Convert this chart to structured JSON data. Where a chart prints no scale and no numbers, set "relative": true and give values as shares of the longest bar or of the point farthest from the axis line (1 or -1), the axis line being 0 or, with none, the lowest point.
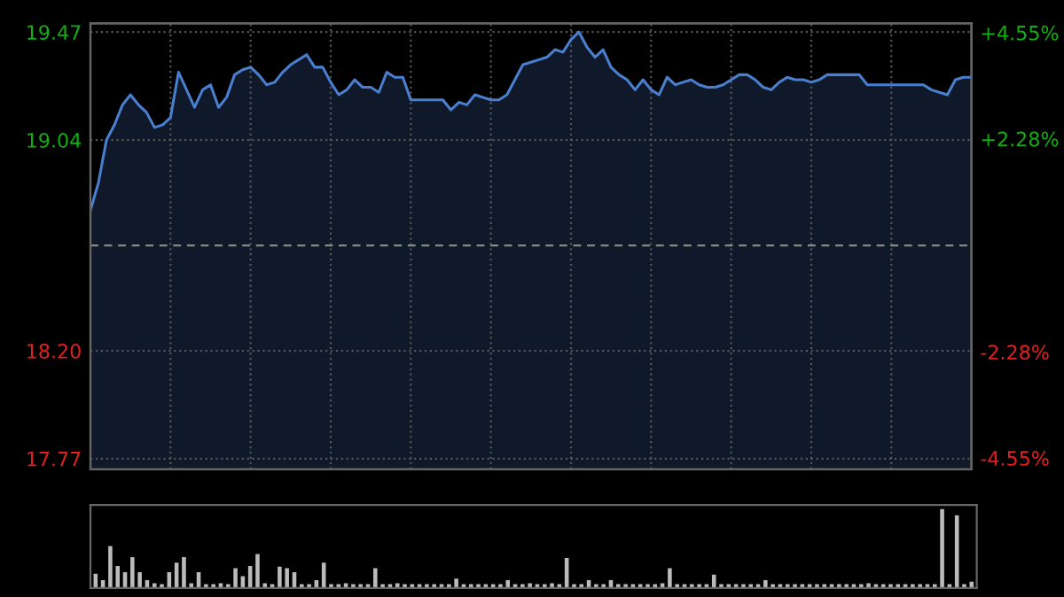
{
  "chart_data": [
    {
      "type": "area",
      "categories": [
        null,
        null,
        null,
        null,
        null,
        null,
        null,
        null,
        null,
        null,
        null,
        null,
        null,
        null,
        null,
        null,
        null,
        null,
        null,
        null,
        null,
        null,
        null,
        null,
        null,
        null,
        null,
        null,
        null,
        null,
        null,
        null,
        null,
        null,
        null,
        null,
        null,
        null,
        null,
        null,
        null,
        null,
        null,
        null,
        null,
        null,
        null,
        null,
        null,
        null,
        null,
        null,
        null,
        null,
        null,
        null,
        null,
        null,
        null,
        null,
        null,
        null,
        null,
        null,
        null,
        null,
        null,
        null,
        null,
        null,
        null,
        null,
        null,
        null,
        null,
        null,
        null,
        null,
        null,
        null,
        null,
        null,
        null,
        null,
        null,
        null,
        null,
        null,
        null,
        null,
        null,
        null,
        null,
        null,
        null,
        null,
        null,
        null,
        null,
        null,
        null,
        null,
        null,
        null,
        null,
        null,
        null,
        null,
        null,
        null,
        null
      ],
      "ylim": [
        17.728,
        19.505
      ],
      "yticks": [
        19.47,
        19.04,
        {
          "value": 18.2,
          "label": "18.20"
        },
        17.77
      ],
      "y2lim": [
        -4.79,
        4.75
      ],
      "y2ticks": [
        {
          "value": 4.55,
          "label": "+4.55%"
        },
        {
          "value": 2.28,
          "label": "+2.28%"
        },
        {
          "value": -2.28,
          "label": "-2.28%"
        },
        {
          "value": -4.55,
          "label": "-4.55%"
        }
      ],
      "grid": true,
      "ref_lines": [
        {
          "axis": "y",
          "value": 18.62,
          "label": null,
          "color": "#888888",
          "line_style": "dashed"
        }
      ],
      "series": [
        {
          "color": "#4a7fd0",
          "values": [
            18.76,
            18.87,
            19.04,
            19.1,
            19.18,
            19.22,
            19.18,
            19.15,
            19.09,
            19.1,
            19.13,
            19.31,
            19.24,
            19.17,
            19.24,
            19.26,
            19.17,
            19.21,
            19.3,
            19.32,
            19.33,
            19.3,
            19.26,
            19.27,
            19.31,
            19.34,
            19.36,
            19.38,
            19.33,
            19.33,
            19.27,
            19.22,
            19.24,
            19.28,
            19.25,
            19.25,
            19.23,
            19.31,
            19.29,
            19.29,
            19.2,
            19.2,
            19.2,
            19.2,
            19.2,
            19.16,
            19.19,
            19.18,
            19.22,
            19.21,
            19.2,
            19.2,
            19.22,
            19.28,
            19.34,
            19.35,
            19.36,
            19.37,
            19.4,
            19.39,
            19.44,
            19.47,
            19.41,
            19.37,
            19.4,
            19.33,
            19.3,
            19.28,
            19.24,
            19.28,
            19.24,
            19.22,
            19.29,
            19.26,
            19.27,
            19.28,
            19.26,
            19.25,
            19.25,
            19.26,
            19.28,
            19.3,
            19.3,
            19.28,
            19.25,
            19.24,
            19.27,
            19.29,
            19.28,
            19.28,
            19.27,
            19.28,
            19.3,
            19.3,
            19.3,
            19.3,
            19.3,
            19.26,
            19.26,
            19.26,
            19.26,
            19.26,
            19.26,
            19.26,
            19.26,
            19.24,
            19.23,
            19.22,
            19.28,
            19.29,
            19.29
          ]
        }
      ]
    },
    {
      "type": "bar",
      "relative": true,
      "categories": [
        null,
        null,
        null,
        null,
        null,
        null,
        null,
        null,
        null,
        null,
        null,
        null,
        null,
        null,
        null,
        null,
        null,
        null,
        null,
        null,
        null,
        null,
        null,
        null,
        null,
        null,
        null,
        null,
        null,
        null,
        null,
        null,
        null,
        null,
        null,
        null,
        null,
        null,
        null,
        null,
        null,
        null,
        null,
        null,
        null,
        null,
        null,
        null,
        null,
        null,
        null,
        null,
        null,
        null,
        null,
        null,
        null,
        null,
        null,
        null,
        null,
        null,
        null,
        null,
        null,
        null,
        null,
        null,
        null,
        null,
        null,
        null,
        null,
        null,
        null,
        null,
        null,
        null,
        null,
        null,
        null,
        null,
        null,
        null,
        null,
        null,
        null,
        null,
        null,
        null,
        null,
        null,
        null,
        null,
        null,
        null,
        null,
        null,
        null,
        null,
        null,
        null,
        null,
        null,
        null,
        null,
        null,
        null,
        null,
        null,
        null,
        null,
        null,
        null,
        null,
        null,
        null,
        null,
        null,
        null
      ],
      "color": "#bbbbbb",
      "values": [
        0.18,
        0.1,
        0.53,
        0.28,
        0.2,
        0.39,
        0.2,
        0.1,
        0.06,
        0.05,
        0.2,
        0.32,
        0.39,
        0.06,
        0.2,
        0.05,
        0.05,
        0.06,
        0.05,
        0.25,
        0.15,
        0.28,
        0.43,
        0.06,
        0.05,
        0.27,
        0.25,
        0.2,
        0.05,
        0.05,
        0.1,
        0.32,
        0.05,
        0.05,
        0.06,
        0.05,
        0.05,
        0.05,
        0.25,
        0.05,
        0.05,
        0.06,
        0.05,
        0.05,
        0.05,
        0.05,
        0.05,
        0.05,
        0.05,
        0.12,
        0.05,
        0.05,
        0.05,
        0.05,
        0.05,
        0.05,
        0.1,
        0.05,
        0.05,
        0.06,
        0.05,
        0.05,
        0.06,
        0.05,
        0.38,
        0.05,
        0.05,
        0.1,
        0.05,
        0.05,
        0.1,
        0.05,
        0.05,
        0.05,
        0.05,
        0.05,
        0.05,
        0.06,
        0.25,
        0.05,
        0.05,
        0.05,
        0.05,
        0.05,
        0.17,
        0.05,
        0.05,
        0.05,
        0.05,
        0.05,
        0.05,
        0.1,
        0.05,
        0.05,
        0.05,
        0.05,
        0.05,
        0.05,
        0.05,
        0.05,
        0.05,
        0.05,
        0.05,
        0.05,
        0.05,
        0.06,
        0.05,
        0.05,
        0.05,
        0.05,
        0.05,
        0.05,
        0.05,
        0.05,
        0.05,
        1.0,
        0.05,
        0.92,
        0.05,
        0.08
      ]
    }
  ]
}
